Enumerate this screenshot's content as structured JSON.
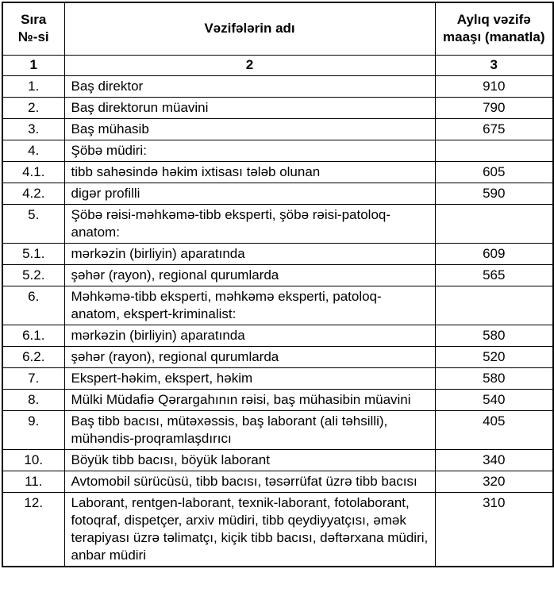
{
  "table": {
    "header": {
      "no_col": "Sıra №-si",
      "position_col": "Vəzifələrin adı",
      "salary_col": "Aylıq vəzifə maaşı (manatla)"
    },
    "column_numbers": [
      "1",
      "2",
      "3"
    ],
    "rows": [
      {
        "no": "1.",
        "name": "Baş direktor",
        "salary": "910"
      },
      {
        "no": "2.",
        "name": "Baş direktorun müavini",
        "salary": "790"
      },
      {
        "no": "3.",
        "name": "Baş mühasib",
        "salary": "675"
      },
      {
        "no": "4.",
        "name": "Şöbə müdiri:",
        "salary": ""
      },
      {
        "no": "4.1.",
        "name": "tibb sahəsində həkim ixtisası tələb olunan",
        "salary": "605"
      },
      {
        "no": "4.2.",
        "name": "digər profilli",
        "salary": "590"
      },
      {
        "no": "5.",
        "name": "Şöbə rəisi-məhkəmə-tibb eksperti, şöbə rəisi-patoloq-anatom:",
        "salary": ""
      },
      {
        "no": "5.1.",
        "name": "mərkəzin (birliyin) aparatında",
        "salary": "609"
      },
      {
        "no": "5.2.",
        "name": "şəhər (rayon), regional qurumlarda",
        "salary": "565"
      },
      {
        "no": "6.",
        "name": "Məhkəmə-tibb eksperti, məhkəmə eksperti, patoloq-anatom, ekspert-kriminalist:",
        "salary": ""
      },
      {
        "no": "6.1.",
        "name": "mərkəzin (birliyin) aparatında",
        "salary": "580"
      },
      {
        "no": "6.2.",
        "name": "şəhər (rayon), regional qurumlarda",
        "salary": "520"
      },
      {
        "no": "7.",
        "name": "Ekspert-həkim, ekspert, həkim",
        "salary": "580"
      },
      {
        "no": "8.",
        "name": "Mülki Müdafiə Qərargahının rəisi, baş mühasibin müavini",
        "salary": "540"
      },
      {
        "no": "9.",
        "name": "Baş tibb bacısı, mütəxəssis, baş laborant (ali təhsilli), mühəndis-proqramlaşdırıcı",
        "salary": "405"
      },
      {
        "no": "10.",
        "name": "Böyük tibb bacısı, böyük laborant",
        "salary": "340"
      },
      {
        "no": "11.",
        "name": "Avtomobil sürücüsü, tibb bacısı, təsərrüfat üzrə tibb bacısı",
        "salary": "320"
      },
      {
        "no": "12.",
        "name": "Laborant, rentgen-laborant, texnik-laborant, fotolaborant, fotoqraf, dispetçer, arxiv müdiri, tibb qeydiyyatçısı, əmək terapiyası üzrə təlimatçı, kiçik tibb bacısı, dəftərxana müdiri, anbar müdiri",
        "salary": "310"
      }
    ]
  }
}
